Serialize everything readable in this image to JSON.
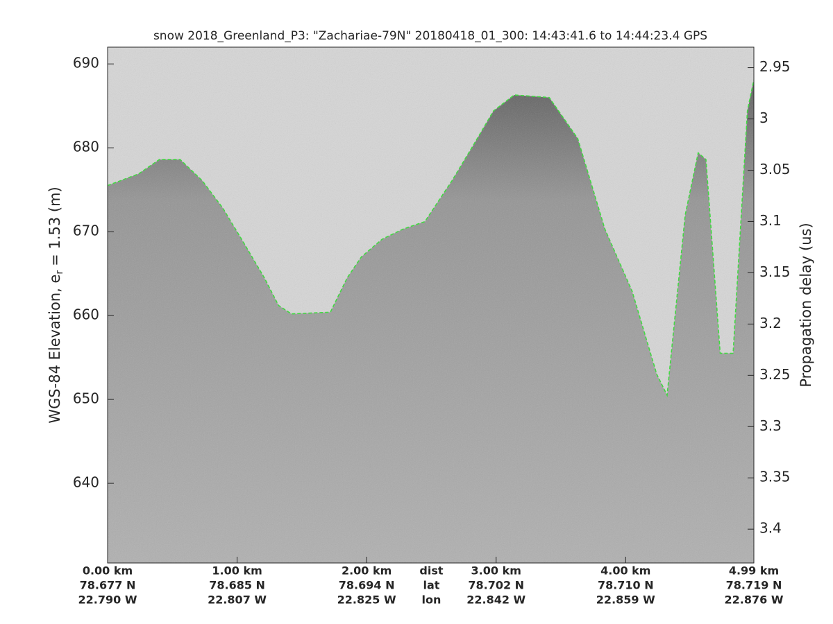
{
  "chart_data": {
    "type": "line",
    "title": "snow 2018_Greenland_P3: \"Zachariae-79N\"  20180418_01_300: 14:43:41.6 to 14:44:23.4 GPS",
    "ylabel_parts": [
      "WGS-84 Elevation, e",
      "r",
      "= 1.53 (m)"
    ],
    "y2label": "Propagation delay (us)",
    "x": [
      0,
      0.24,
      0.4,
      0.56,
      0.73,
      0.89,
      1.05,
      1.21,
      1.32,
      1.42,
      1.72,
      1.85,
      1.96,
      2.12,
      2.28,
      2.45,
      2.66,
      2.82,
      2.98,
      3.14,
      3.41,
      3.63,
      3.84,
      4.05,
      4.24,
      4.32,
      4.46,
      4.56,
      4.62,
      4.73,
      4.83,
      4.94,
      4.99
    ],
    "values": [
      675.5,
      676.9,
      678.6,
      678.6,
      676.1,
      672.8,
      668.7,
      664.5,
      661.2,
      660.2,
      660.4,
      664.5,
      667.0,
      669.1,
      670.3,
      671.2,
      676.1,
      680.2,
      684.4,
      686.3,
      686.0,
      681.1,
      670.3,
      662.9,
      653.0,
      650.5,
      672.0,
      679.4,
      678.6,
      655.5,
      655.5,
      684.4,
      688.1
    ],
    "color": "#33dd33",
    "xlim": [
      0,
      4.99
    ],
    "xticks": [
      {
        "value": 0,
        "label": "0.00 km"
      },
      {
        "value": 1,
        "label": "1.00 km"
      },
      {
        "value": 2,
        "label": "2.00 km"
      },
      {
        "value": 3,
        "label": "3.00 km"
      },
      {
        "value": 4,
        "label": "4.00 km"
      },
      {
        "value": 4.99,
        "label": "4.99 km"
      }
    ],
    "xtick_lat": [
      "78.677 N",
      "78.685 N",
      "78.694 N",
      "78.702 N",
      "78.710 N",
      "78.719 N"
    ],
    "xtick_lon": [
      "22.790 W",
      "22.807 W",
      "22.825 W",
      "22.842 W",
      "22.859 W",
      "22.876 W"
    ],
    "xtick_row_names": [
      "dist",
      "lat",
      "lon"
    ],
    "ylim": [
      630.5,
      692
    ],
    "yticks": [
      640,
      650,
      660,
      670,
      680,
      690
    ],
    "y2lim": [
      2.93,
      3.433
    ],
    "y2_reversed": true,
    "y2ticks": [
      2.95,
      3,
      3.05,
      3.1,
      3.15,
      3.2,
      3.25,
      3.3,
      3.35,
      3.4
    ]
  }
}
